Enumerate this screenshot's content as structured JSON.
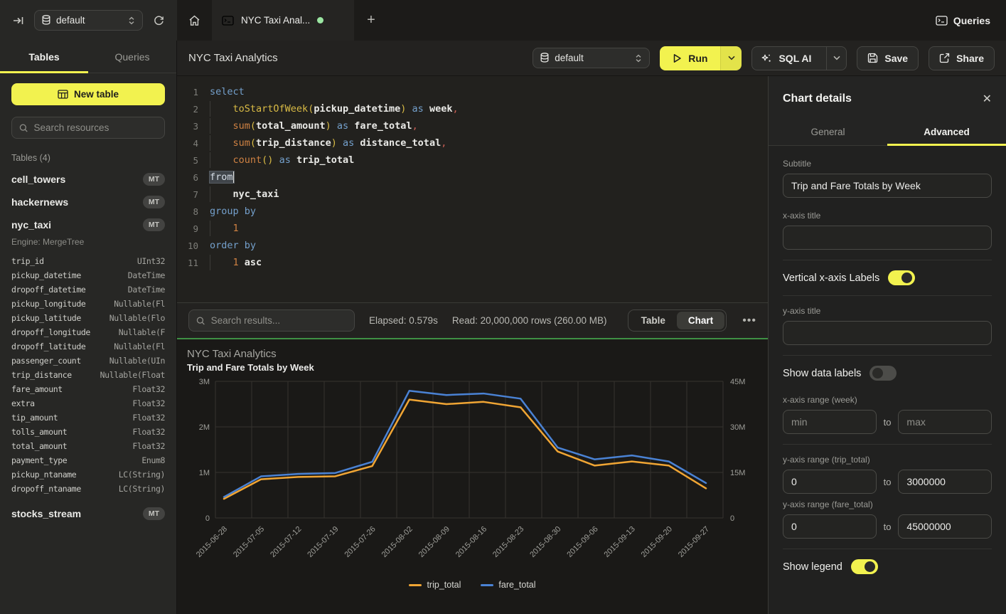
{
  "topbar": {
    "database_selector": {
      "value": "default"
    },
    "tab": {
      "title": "NYC Taxi Anal..."
    },
    "queries_label": "Queries"
  },
  "header": {
    "title": "NYC Taxi Analytics",
    "database_selector": {
      "value": "default"
    },
    "run_label": "Run",
    "sql_ai_label": "SQL AI",
    "save_label": "Save",
    "share_label": "Share"
  },
  "sidebar": {
    "tabs": {
      "tables": "Tables",
      "queries": "Queries"
    },
    "new_table_label": "New table",
    "search_placeholder": "Search resources",
    "section_title": "Tables (4)",
    "tables": [
      {
        "name": "cell_towers",
        "badge": "MT"
      },
      {
        "name": "hackernews",
        "badge": "MT"
      },
      {
        "name": "nyc_taxi",
        "badge": "MT",
        "engine": "Engine: MergeTree",
        "columns": [
          {
            "name": "trip_id",
            "type": "UInt32"
          },
          {
            "name": "pickup_datetime",
            "type": "DateTime"
          },
          {
            "name": "dropoff_datetime",
            "type": "DateTime"
          },
          {
            "name": "pickup_longitude",
            "type": "Nullable(Fl"
          },
          {
            "name": "pickup_latitude",
            "type": "Nullable(Flo"
          },
          {
            "name": "dropoff_longitude",
            "type": "Nullable(F"
          },
          {
            "name": "dropoff_latitude",
            "type": "Nullable(Fl"
          },
          {
            "name": "passenger_count",
            "type": "Nullable(UIn"
          },
          {
            "name": "trip_distance",
            "type": "Nullable(Float"
          },
          {
            "name": "fare_amount",
            "type": "Float32"
          },
          {
            "name": "extra",
            "type": "Float32"
          },
          {
            "name": "tip_amount",
            "type": "Float32"
          },
          {
            "name": "tolls_amount",
            "type": "Float32"
          },
          {
            "name": "total_amount",
            "type": "Float32"
          },
          {
            "name": "payment_type",
            "type": "Enum8"
          },
          {
            "name": "pickup_ntaname",
            "type": "LC(String)"
          },
          {
            "name": "dropoff_ntaname",
            "type": "LC(String)"
          }
        ]
      },
      {
        "name": "stocks_stream",
        "badge": "MT"
      }
    ]
  },
  "editor": {
    "lines": [
      {
        "ind": false,
        "tokens": [
          [
            "kw",
            "select"
          ]
        ]
      },
      {
        "ind": true,
        "tokens": [
          [
            "pl",
            "    "
          ],
          [
            "fn",
            "toStartOfWeek"
          ],
          [
            "pr",
            "("
          ],
          [
            "id",
            "pickup_datetime"
          ],
          [
            "pr",
            ")"
          ],
          [
            "pl",
            " "
          ],
          [
            "kw",
            "as"
          ],
          [
            "pl",
            " "
          ],
          [
            "id",
            "week"
          ],
          [
            "cm",
            ","
          ]
        ]
      },
      {
        "ind": true,
        "tokens": [
          [
            "pl",
            "    "
          ],
          [
            "ag",
            "sum"
          ],
          [
            "pr",
            "("
          ],
          [
            "id",
            "total_amount"
          ],
          [
            "pr",
            ")"
          ],
          [
            "pl",
            " "
          ],
          [
            "kw",
            "as"
          ],
          [
            "pl",
            " "
          ],
          [
            "id",
            "fare_total"
          ],
          [
            "cm",
            ","
          ]
        ]
      },
      {
        "ind": true,
        "tokens": [
          [
            "pl",
            "    "
          ],
          [
            "ag",
            "sum"
          ],
          [
            "pr",
            "("
          ],
          [
            "id",
            "trip_distance"
          ],
          [
            "pr",
            ")"
          ],
          [
            "pl",
            " "
          ],
          [
            "kw",
            "as"
          ],
          [
            "pl",
            " "
          ],
          [
            "id",
            "distance_total"
          ],
          [
            "cm",
            ","
          ]
        ]
      },
      {
        "ind": true,
        "tokens": [
          [
            "pl",
            "    "
          ],
          [
            "ag",
            "count"
          ],
          [
            "pr",
            "()"
          ],
          [
            "pl",
            " "
          ],
          [
            "kw",
            "as"
          ],
          [
            "pl",
            " "
          ],
          [
            "id",
            "trip_total"
          ]
        ]
      },
      {
        "ind": false,
        "tokens": [
          [
            "kwsel",
            "from"
          ]
        ]
      },
      {
        "ind": true,
        "tokens": [
          [
            "pl",
            "    "
          ],
          [
            "id",
            "nyc_taxi"
          ]
        ]
      },
      {
        "ind": false,
        "tokens": [
          [
            "kw",
            "group by"
          ]
        ]
      },
      {
        "ind": true,
        "tokens": [
          [
            "pl",
            "    "
          ],
          [
            "nm",
            "1"
          ]
        ]
      },
      {
        "ind": false,
        "tokens": [
          [
            "kw",
            "order by"
          ]
        ]
      },
      {
        "ind": true,
        "tokens": [
          [
            "pl",
            "    "
          ],
          [
            "nm",
            "1"
          ],
          [
            "pl",
            " "
          ],
          [
            "id",
            "asc"
          ]
        ]
      }
    ]
  },
  "results_bar": {
    "search_placeholder": "Search results...",
    "elapsed": "Elapsed: 0.579s",
    "read": "Read: 20,000,000 rows (260.00 MB)",
    "table_label": "Table",
    "chart_label": "Chart"
  },
  "chart_data": {
    "type": "line",
    "title": "NYC Taxi Analytics",
    "subtitle": "Trip and Fare Totals by Week",
    "categories": [
      "2015-06-28",
      "2015-07-05",
      "2015-07-12",
      "2015-07-19",
      "2015-07-26",
      "2015-08-02",
      "2015-08-09",
      "2015-08-16",
      "2015-08-23",
      "2015-08-30",
      "2015-09-06",
      "2015-09-13",
      "2015-09-20",
      "2015-09-27"
    ],
    "series": [
      {
        "name": "trip_total",
        "axis": "left",
        "color": "#f0a534",
        "values": [
          420000,
          850000,
          900000,
          915000,
          1140000,
          2600000,
          2500000,
          2550000,
          2430000,
          1460000,
          1150000,
          1240000,
          1150000,
          650000
        ]
      },
      {
        "name": "fare_total",
        "axis": "right",
        "color": "#4a82d4",
        "values": [
          6900000,
          13700000,
          14500000,
          14800000,
          18500000,
          41900000,
          40500000,
          41000000,
          39300000,
          23200000,
          19300000,
          20600000,
          18600000,
          11500000
        ]
      }
    ],
    "left_axis": {
      "range": [
        0,
        3000000
      ],
      "ticks": [
        "0",
        "1M",
        "2M",
        "3M"
      ]
    },
    "right_axis": {
      "range": [
        0,
        45000000
      ],
      "ticks": [
        "0",
        "15M",
        "30M",
        "45M"
      ]
    },
    "grid": true,
    "legend_position": "bottom",
    "x_labels_rotated": true
  },
  "panel": {
    "title": "Chart details",
    "tabs": {
      "general": "General",
      "advanced": "Advanced"
    },
    "subtitle": {
      "label": "Subtitle",
      "value": "Trip and Fare Totals by Week"
    },
    "xaxis_title": {
      "label": "x-axis title",
      "value": ""
    },
    "vertical_labels": {
      "label": "Vertical x-axis Labels",
      "on": true
    },
    "yaxis_title": {
      "label": "y-axis title",
      "value": ""
    },
    "data_labels": {
      "label": "Show data labels",
      "on": false
    },
    "xaxis_range": {
      "label": "x-axis range (week)",
      "min_placeholder": "min",
      "max_placeholder": "max",
      "separator": "to"
    },
    "yaxis_range_trip": {
      "label": "y-axis range (trip_total)",
      "min": "0",
      "max": "3000000",
      "separator": "to"
    },
    "yaxis_range_fare": {
      "label": "y-axis range (fare_total)",
      "min": "0",
      "max": "45000000",
      "separator": "to"
    },
    "show_legend": {
      "label": "Show legend",
      "on": true
    }
  }
}
